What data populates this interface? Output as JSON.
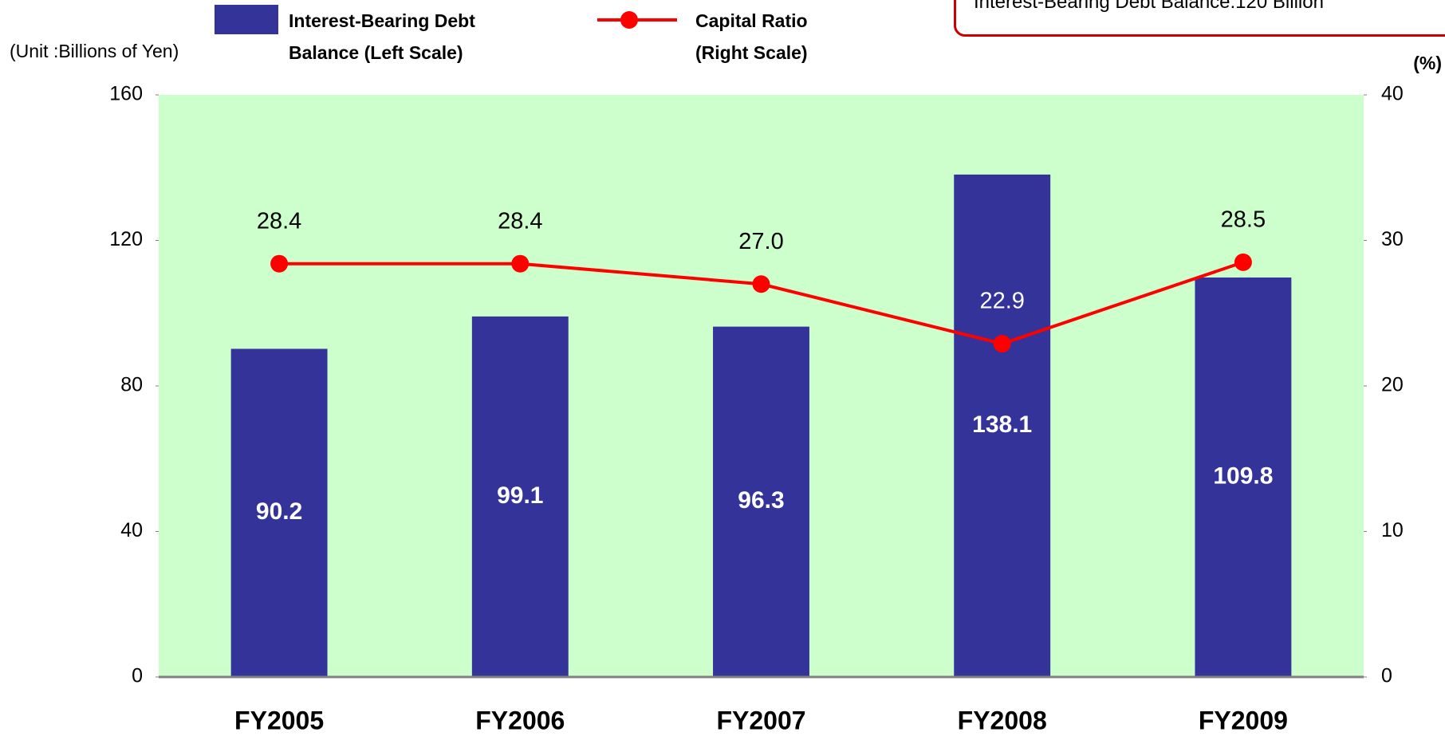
{
  "chart_data": {
    "type": "bar-line",
    "unit_label": "(Unit :Billions of Yen)",
    "y2_unit_label": "(%)",
    "note": "Interest-Bearing Debt Balance:120 Billion",
    "categories": [
      "FY2005",
      "FY2006",
      "FY2007",
      "FY2008",
      "FY2009"
    ],
    "series": [
      {
        "name": "Interest-Bearing Debt Balance (Left Scale)",
        "type": "bar",
        "color": "#333399",
        "values": [
          90.2,
          99.1,
          96.3,
          138.1,
          109.8
        ]
      },
      {
        "name": "Capital Ratio (Right Scale)",
        "type": "line",
        "color": "#ff0000",
        "axis": "y2",
        "values": [
          28.4,
          28.4,
          27.0,
          22.9,
          28.5
        ],
        "value_labels": [
          "28.4",
          "28.4",
          "27.0",
          "22.9",
          "28.5"
        ]
      }
    ],
    "ylim": [
      0,
      160
    ],
    "yticks": [
      0,
      40,
      80,
      120,
      160
    ],
    "y2lim": [
      0,
      40
    ],
    "y2ticks": [
      0,
      10,
      20,
      30,
      40
    ],
    "plot_background": "#ccffcc"
  }
}
